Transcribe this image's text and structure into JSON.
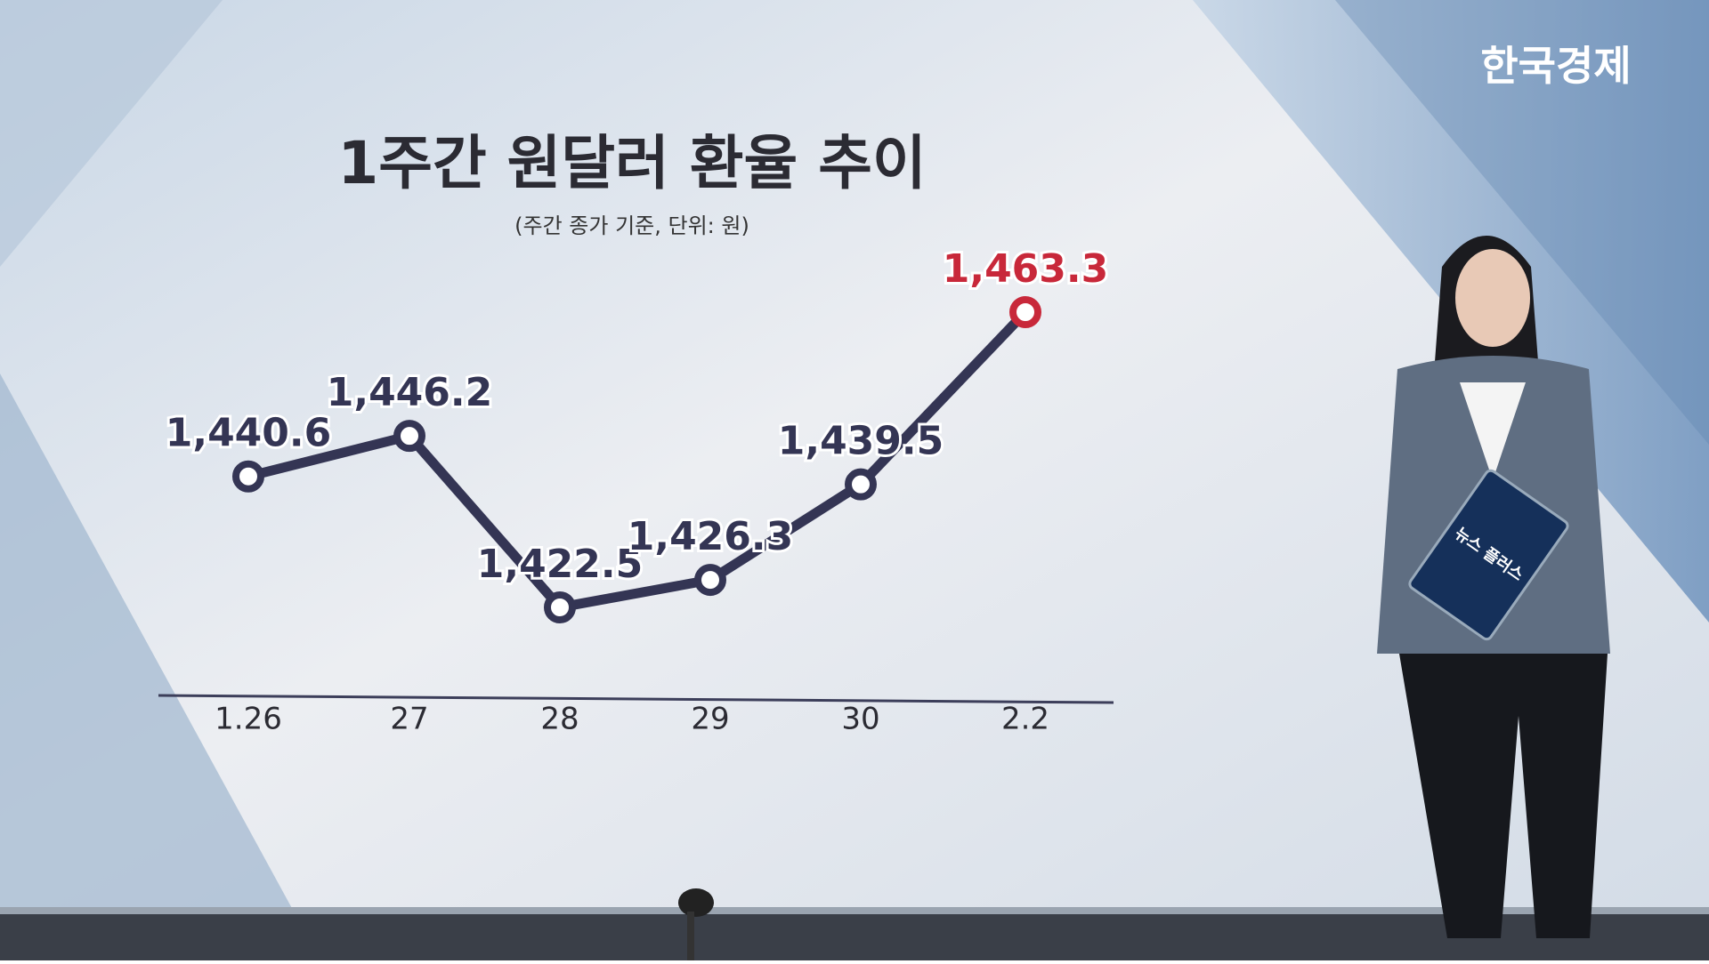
{
  "brand": "한국경제",
  "tablet_text": "뉴스 플러스",
  "chart_data": {
    "type": "line",
    "title": "1주간 원달러 환율 추이",
    "subtitle": "(주간 종가 기준, 단위: 원)",
    "categories": [
      "1.26",
      "27",
      "28",
      "29",
      "30",
      "2.2"
    ],
    "values": [
      1440.6,
      1446.2,
      1422.5,
      1426.3,
      1439.5,
      1463.3
    ],
    "value_labels": [
      "1,440.6",
      "1,446.2",
      "1,422.5",
      "1,426.3",
      "1,439.5",
      "1,463.3"
    ],
    "color": "#343554",
    "marker_colors": [
      "#343554",
      "#343554",
      "#343554",
      "#343554",
      "#343554",
      "#c8283a"
    ]
  }
}
